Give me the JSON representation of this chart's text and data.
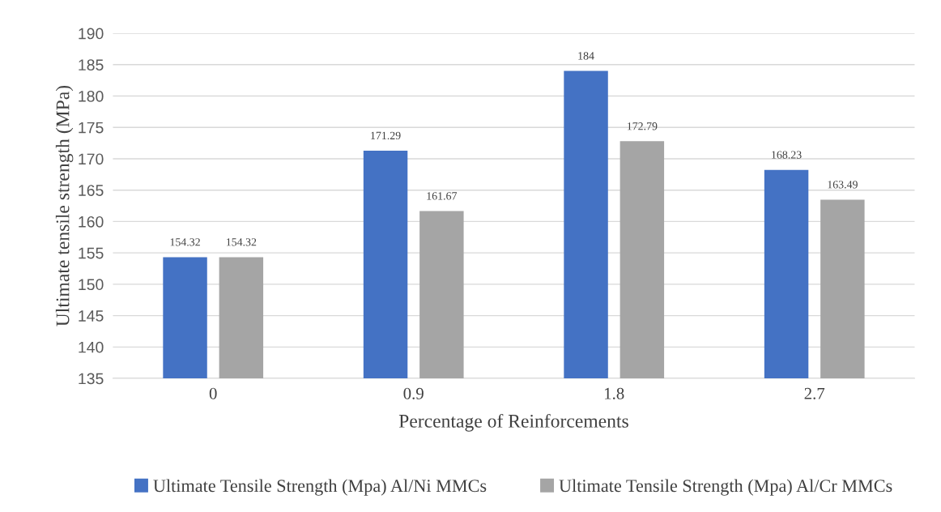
{
  "chart_data": {
    "type": "bar",
    "xlabel": "Percentage of Reinforcements",
    "ylabel": "Ultimate tensile strength (MPa)",
    "categories": [
      "0",
      "0.9",
      "1.8",
      "2.7"
    ],
    "series": [
      {
        "name": "Ultimate Tensile Strength (Mpa) Al/Ni MMCs",
        "color": "#4472c4",
        "values": [
          154.32,
          171.29,
          184,
          168.23
        ]
      },
      {
        "name": "Ultimate Tensile Strength (Mpa) Al/Cr MMCs",
        "color": "#a5a5a5",
        "values": [
          154.32,
          161.67,
          172.79,
          163.49
        ]
      }
    ],
    "ylim": [
      135,
      190
    ],
    "yticks": [
      135,
      140,
      145,
      150,
      155,
      160,
      165,
      170,
      175,
      180,
      185,
      190
    ],
    "grid": "y",
    "legend": "bottom",
    "data_labels": true
  }
}
